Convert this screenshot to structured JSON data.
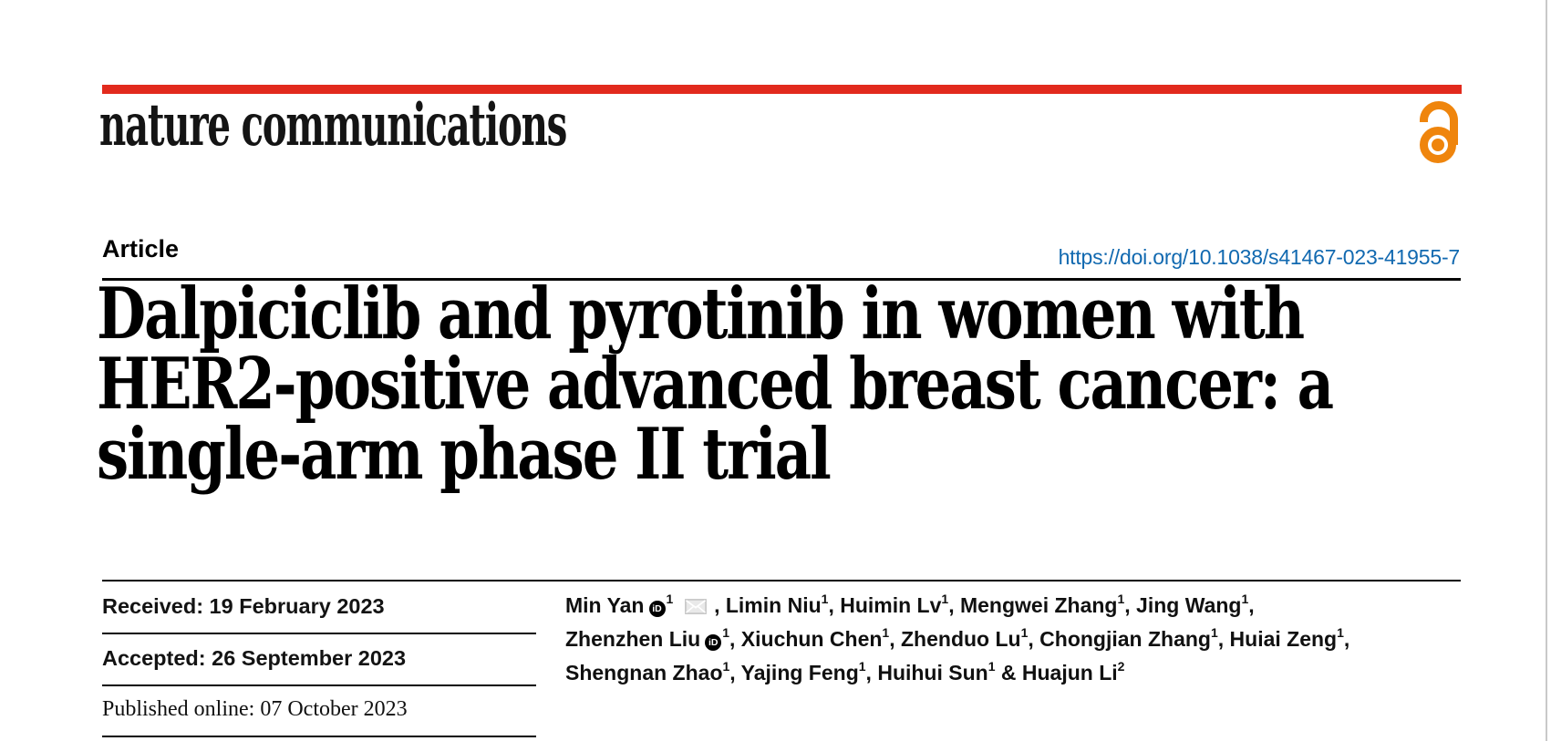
{
  "brand": {
    "journal_name": "nature communications",
    "bar_color": "#e22a1d",
    "open_access_color": "#ef850d"
  },
  "header": {
    "article_type": "Article",
    "doi": "https://doi.org/10.1038/s41467-023-41955-7",
    "doi_color": "#1169b0"
  },
  "title_lines": [
    "Dalpiciclib and pyrotinib in women with",
    "HER2-positive advanced breast cancer: a",
    "single-arm phase II trial"
  ],
  "dates": {
    "received": "Received: 19 February 2023",
    "accepted": "Accepted: 26 September 2023",
    "published": "Published online: 07 October 2023"
  },
  "icons": {
    "orcid_badge_text": "iD",
    "open_access": "open-access-lock-icon",
    "envelope": "email-icon"
  },
  "authors": {
    "lines": [
      {
        "segments": [
          {
            "name": "Min Yan",
            "orcid": true,
            "sup": "1",
            "envelope": true,
            "sep": ", "
          },
          {
            "name": "Limin Niu",
            "sup": "1",
            "sep": ", "
          },
          {
            "name": "Huimin Lv",
            "sup": "1",
            "sep": ", "
          },
          {
            "name": "Mengwei Zhang",
            "sup": "1",
            "sep": ", "
          },
          {
            "name": "Jing Wang",
            "sup": "1",
            "sep": ","
          }
        ]
      },
      {
        "segments": [
          {
            "name": "Zhenzhen Liu",
            "orcid": true,
            "sup": "1",
            "sep": ", "
          },
          {
            "name": "Xiuchun Chen",
            "sup": "1",
            "sep": ", "
          },
          {
            "name": "Zhenduo Lu",
            "sup": "1",
            "sep": ", "
          },
          {
            "name": "Chongjian Zhang",
            "sup": "1",
            "sep": ", "
          },
          {
            "name": "Huiai Zeng",
            "sup": "1",
            "sep": ","
          }
        ]
      },
      {
        "segments": [
          {
            "name": "Shengnan Zhao",
            "sup": "1",
            "sep": ", "
          },
          {
            "name": "Yajing Feng",
            "sup": "1",
            "sep": ", "
          },
          {
            "name": "Huihui Sun",
            "sup": "1",
            "sep": " & "
          },
          {
            "name": "Huajun Li",
            "sup": "2",
            "sep": ""
          }
        ]
      }
    ]
  }
}
